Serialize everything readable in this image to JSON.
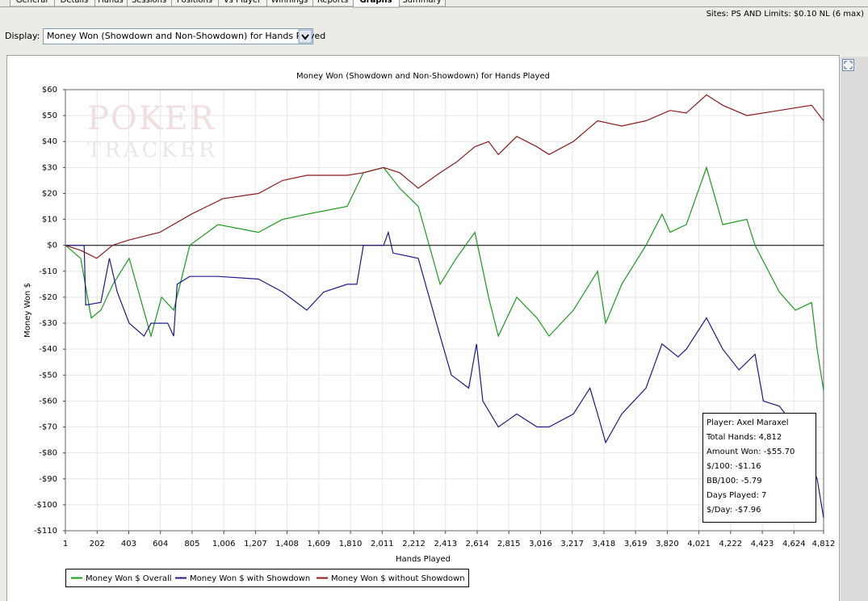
{
  "tabs": [
    "General",
    "Details",
    "Hands",
    "Sessions",
    "Positions",
    "Vs Player",
    "Winnings",
    "Reports",
    "Graphs",
    "Summary"
  ],
  "sites": "Sites: PS AND Limits: $0.10 NL (6 max)",
  "display_label": "Display:",
  "display_value": "Money Won (Showdown and Non-Showdown) for Hands Played",
  "chart_data": {
    "type": "line",
    "title": "Money Won (Showdown and Non-Showdown) for Hands Played",
    "watermark": [
      "POKER",
      "TRACKER"
    ],
    "x_label": "Hands Played",
    "y_label": "Money Won $",
    "grid": true,
    "xlim": [
      1,
      4812
    ],
    "xticks": [
      1,
      202,
      403,
      604,
      805,
      {
        "value": 1006,
        "label": "1,006"
      },
      {
        "value": 1207,
        "label": "1,207"
      },
      {
        "value": 1408,
        "label": "1,408"
      },
      {
        "value": 1609,
        "label": "1,609"
      },
      {
        "value": 1810,
        "label": "1,810"
      },
      {
        "value": 2011,
        "label": "2,011"
      },
      {
        "value": 2212,
        "label": "2,212"
      },
      {
        "value": 2413,
        "label": "2,413"
      },
      {
        "value": 2614,
        "label": "2,614"
      },
      {
        "value": 2815,
        "label": "2,815"
      },
      {
        "value": 3016,
        "label": "3,016"
      },
      {
        "value": 3217,
        "label": "3,217"
      },
      {
        "value": 3418,
        "label": "3,418"
      },
      {
        "value": 3619,
        "label": "3,619"
      },
      {
        "value": 3820,
        "label": "3,820"
      },
      {
        "value": 4021,
        "label": "4,021"
      },
      {
        "value": 4222,
        "label": "4,222"
      },
      {
        "value": 4423,
        "label": "4,423"
      },
      {
        "value": 4624,
        "label": "4,624"
      },
      {
        "value": 4812,
        "label": "4,812"
      }
    ],
    "ylim": [
      -110,
      60
    ],
    "yticks": [
      {
        "value": 60,
        "label": "$60"
      },
      {
        "value": 50,
        "label": "$50"
      },
      {
        "value": 40,
        "label": "$40"
      },
      {
        "value": 30,
        "label": "$30"
      },
      {
        "value": 20,
        "label": "$20"
      },
      {
        "value": 10,
        "label": "$10"
      },
      {
        "value": 0,
        "label": "$0"
      },
      {
        "value": -10,
        "label": "-$10"
      },
      {
        "value": -20,
        "label": "-$20"
      },
      {
        "value": -30,
        "label": "-$30"
      },
      {
        "value": -40,
        "label": "-$40"
      },
      {
        "value": -50,
        "label": "-$50"
      },
      {
        "value": -60,
        "label": "-$60"
      },
      {
        "value": -70,
        "label": "-$70"
      },
      {
        "value": -80,
        "label": "-$80"
      },
      {
        "value": -90,
        "label": "-$90"
      },
      {
        "value": -100,
        "label": "-$100"
      },
      {
        "value": -110,
        "label": "-$110"
      }
    ],
    "series": [
      {
        "name": "Money Won $ Overall",
        "color": "#1a9a1a",
        "x": [
          1,
          98,
          165,
          226,
          303,
          406,
          544,
          611,
          688,
          790,
          970,
          1226,
          1379,
          1533,
          1789,
          1892,
          2020,
          2122,
          2240,
          2379,
          2481,
          2599,
          2686,
          2748,
          2865,
          2993,
          3070,
          3224,
          3378,
          3429,
          3531,
          3685,
          3787,
          3838,
          3941,
          4069,
          4172,
          4325,
          4377,
          4531,
          4633,
          4736,
          4771,
          4812
        ],
        "values": [
          0,
          -5,
          -28,
          -25,
          -15,
          -5,
          -35,
          -20,
          -25,
          0,
          8,
          5,
          10,
          12,
          15,
          28,
          30,
          22,
          15,
          -15,
          -5,
          5,
          -20,
          -35,
          -20,
          -28,
          -35,
          -25,
          -10,
          -30,
          -15,
          0,
          12,
          5,
          8,
          30,
          8,
          10,
          0,
          -18,
          -25,
          -22,
          -40,
          -56
        ]
      },
      {
        "name": "Money Won $ with Showdown",
        "color": "#1a1a8c",
        "x": [
          1,
          120,
          130,
          226,
          280,
          330,
          406,
          500,
          544,
          650,
          688,
          710,
          790,
          970,
          1226,
          1379,
          1533,
          1640,
          1789,
          1850,
          1892,
          2020,
          2050,
          2080,
          2240,
          2379,
          2450,
          2560,
          2610,
          2650,
          2748,
          2865,
          2993,
          3070,
          3224,
          3330,
          3378,
          3429,
          3531,
          3685,
          3787,
          3889,
          3941,
          4069,
          4172,
          4275,
          4377,
          4430,
          4531,
          4633,
          4736,
          4771,
          4812
        ],
        "values": [
          0,
          0,
          -23,
          -22,
          -5,
          -18,
          -30,
          -35,
          -30,
          -30,
          -35,
          -15,
          -12,
          -12,
          -13,
          -18,
          -25,
          -18,
          -15,
          -15,
          0,
          0,
          5,
          -3,
          -5,
          -35,
          -50,
          -55,
          -38,
          -60,
          -70,
          -65,
          -70,
          -70,
          -65,
          -55,
          -65,
          -76,
          -65,
          -55,
          -38,
          -43,
          -40,
          -28,
          -40,
          -48,
          -42,
          -60,
          -62,
          -70,
          -85,
          -90,
          -105
        ]
      },
      {
        "name": "Money Won $ without Showdown",
        "color": "#8c1a1a",
        "x": [
          1,
          100,
          200,
          300,
          400,
          600,
          800,
          1000,
          1226,
          1379,
          1533,
          1789,
          1892,
          2020,
          2122,
          2240,
          2379,
          2481,
          2599,
          2686,
          2748,
          2865,
          2993,
          3070,
          3224,
          3378,
          3531,
          3685,
          3838,
          3941,
          4069,
          4172,
          4325,
          4531,
          4736,
          4812
        ],
        "values": [
          0,
          -2,
          -5,
          0,
          2,
          5,
          12,
          18,
          20,
          25,
          27,
          27,
          28,
          30,
          28,
          22,
          28,
          32,
          38,
          40,
          35,
          42,
          38,
          35,
          40,
          48,
          46,
          48,
          52,
          51,
          58,
          54,
          50,
          52,
          54,
          48
        ]
      }
    ]
  },
  "tooltip": [
    "Player: Axel Maraxel",
    "Total Hands: 4,812",
    "Amount Won: -$55.70",
    "$/100: -$1.16",
    "BB/100: -5.79",
    "Days Played: 7",
    "$/Day: -$7.96"
  ]
}
